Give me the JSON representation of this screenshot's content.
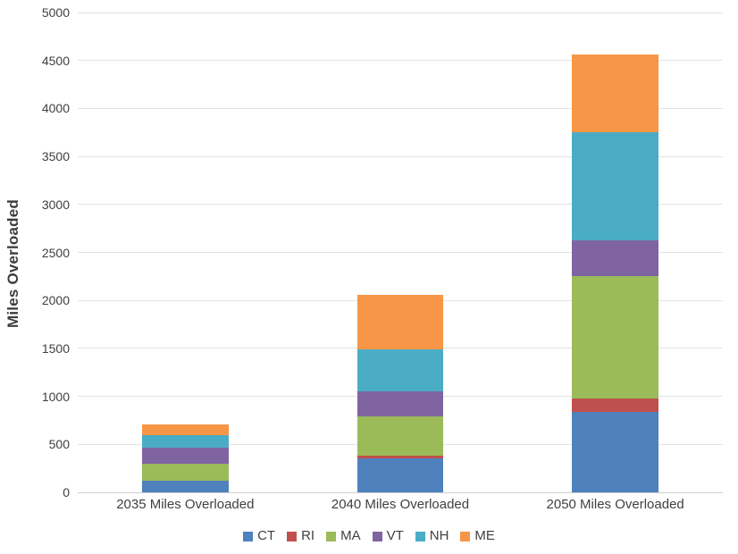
{
  "chart_data": {
    "type": "bar",
    "stacked": true,
    "title": "",
    "xlabel": "",
    "ylabel": "Miles Overloaded",
    "categories": [
      "2035 Miles Overloaded",
      "2040 Miles Overloaded",
      "2050 Miles Overloaded"
    ],
    "series": [
      {
        "name": "CT",
        "color": "#4F81BD",
        "values": [
          120,
          350,
          835
        ]
      },
      {
        "name": "RI",
        "color": "#C0504D",
        "values": [
          0,
          30,
          140
        ]
      },
      {
        "name": "MA",
        "color": "#9BBB59",
        "values": [
          180,
          415,
          1275
        ]
      },
      {
        "name": "VT",
        "color": "#8064A2",
        "values": [
          165,
          260,
          380
        ]
      },
      {
        "name": "NH",
        "color": "#4BACC6",
        "values": [
          130,
          435,
          1120
        ]
      },
      {
        "name": "ME",
        "color": "#F79646",
        "values": [
          110,
          565,
          810
        ]
      }
    ],
    "ylim": [
      0,
      5000
    ],
    "yticks": [
      0,
      500,
      1000,
      1500,
      2000,
      2500,
      3000,
      3500,
      4000,
      4500,
      5000
    ],
    "grid": true,
    "legend_position": "bottom"
  },
  "styles": {
    "background": "#FFFFFF",
    "grid_color": "#E3E3E3",
    "axis_line_color": "#CFCFCF",
    "tick_label_color": "#404040",
    "axis_title_color": "#3D3D3D"
  }
}
